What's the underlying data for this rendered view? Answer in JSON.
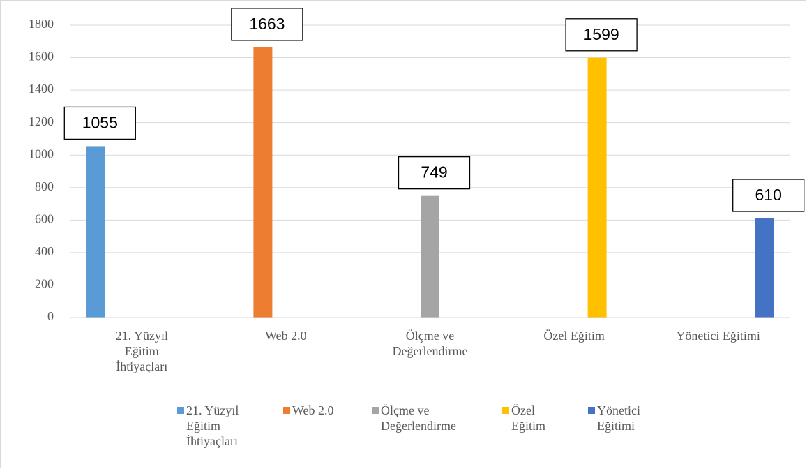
{
  "chart_data": {
    "type": "bar",
    "categories": [
      "21. Yüzyıl Eğitim İhtiyaçları",
      "Web 2.0",
      "Ölçme ve Değerlendirme",
      "Özel Eğitim",
      "Yönetici Eğitimi"
    ],
    "series": [
      {
        "name": "21. Yüzyıl Eğitim İhtiyaçları",
        "color": "#5b9bd5",
        "values": [
          1055,
          null,
          null,
          null,
          null
        ]
      },
      {
        "name": "Web 2.0",
        "color": "#ed7d31",
        "values": [
          null,
          1663,
          null,
          null,
          null
        ]
      },
      {
        "name": "Ölçme ve Değerlendirme",
        "color": "#a5a5a5",
        "values": [
          null,
          null,
          749,
          null,
          null
        ]
      },
      {
        "name": "Özel Eğitim",
        "color": "#ffc000",
        "values": [
          null,
          null,
          null,
          1599,
          null
        ]
      },
      {
        "name": "Yönetici Eğitimi",
        "color": "#4472c4",
        "values": [
          null,
          null,
          null,
          null,
          610
        ]
      }
    ],
    "ylim": [
      0,
      1800
    ],
    "yticks": [
      0,
      200,
      400,
      600,
      800,
      1000,
      1200,
      1400,
      1600,
      1800
    ],
    "grid": true,
    "legend": "bottom"
  }
}
